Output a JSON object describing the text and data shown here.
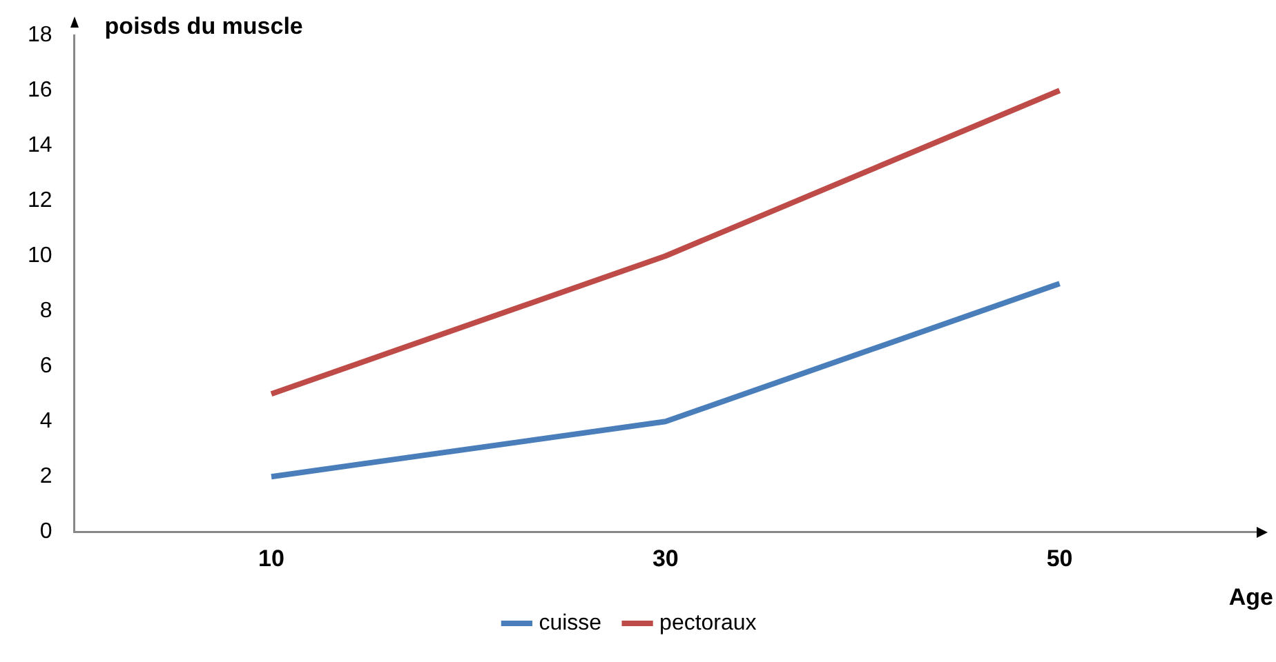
{
  "chart_data": {
    "type": "line",
    "xlabel": "Age",
    "ylabel": "poisds du muscle",
    "categories": [
      "10",
      "30",
      "50"
    ],
    "series": [
      {
        "name": "cuisse",
        "color": "#4a7ebb",
        "values": [
          2,
          4,
          9
        ]
      },
      {
        "name": "pectoraux",
        "color": "#be4b48",
        "values": [
          5,
          10,
          16
        ]
      }
    ],
    "ylim": [
      0,
      18
    ],
    "yticks": [
      0,
      2,
      4,
      6,
      8,
      10,
      12,
      14,
      16,
      18
    ],
    "grid": false,
    "legend": "bottom",
    "marker": "none",
    "line_style": "solid"
  }
}
